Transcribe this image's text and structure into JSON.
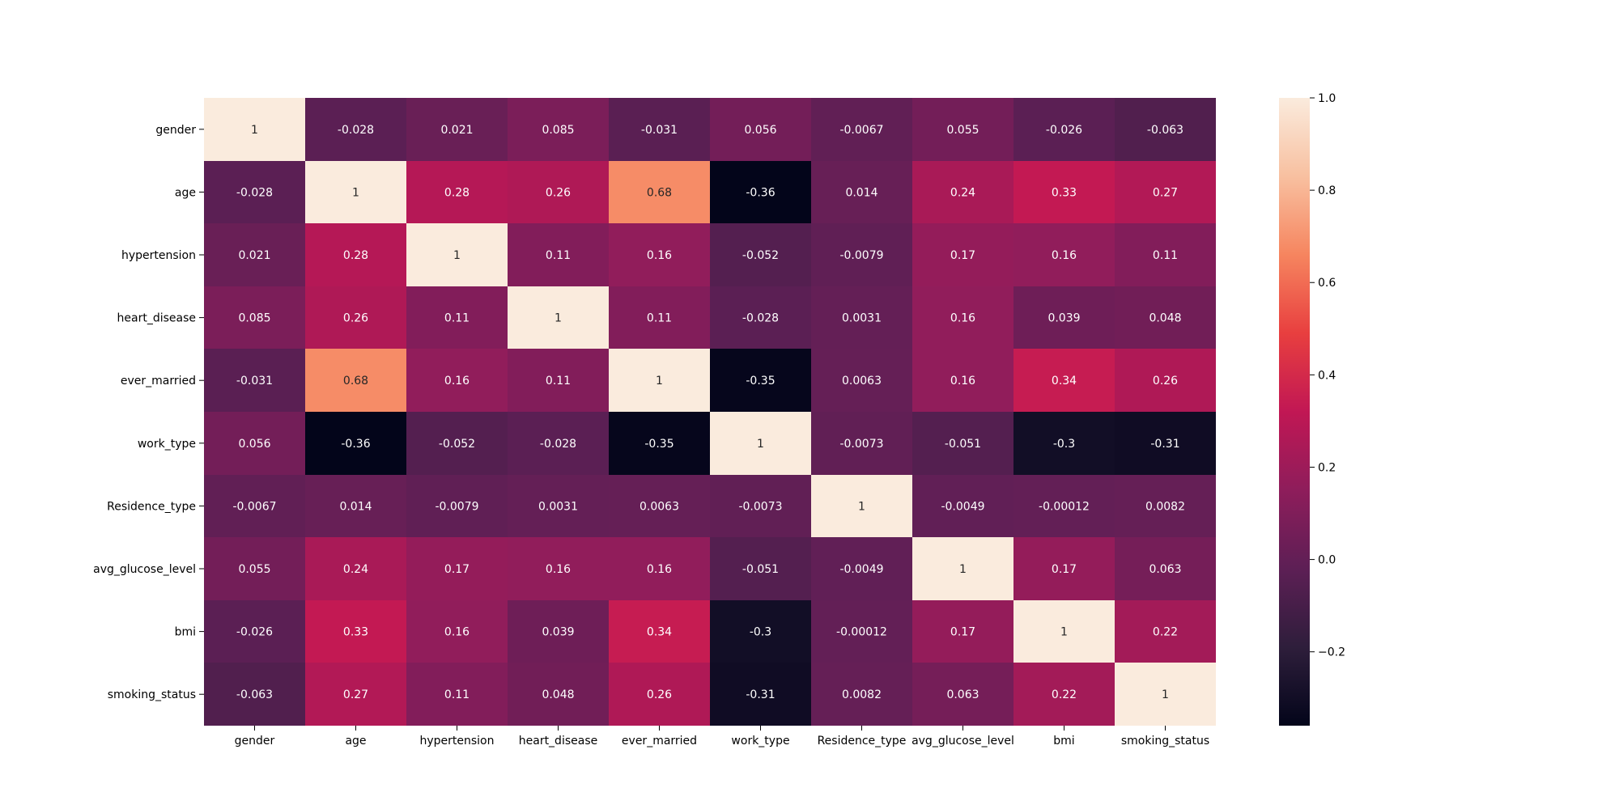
{
  "chart_data": {
    "type": "heatmap",
    "title": "",
    "xlabel": "",
    "ylabel": "",
    "x_categories": [
      "gender",
      "age",
      "hypertension",
      "heart_disease",
      "ever_married",
      "work_type",
      "Residence_type",
      "avg_glucose_level",
      "bmi",
      "smoking_status"
    ],
    "y_categories": [
      "gender",
      "age",
      "hypertension",
      "heart_disease",
      "ever_married",
      "work_type",
      "Residence_type",
      "avg_glucose_level",
      "bmi",
      "smoking_status"
    ],
    "values": [
      [
        1,
        -0.028,
        0.021,
        0.085,
        -0.031,
        0.056,
        -0.0067,
        0.055,
        -0.026,
        -0.063
      ],
      [
        -0.028,
        1,
        0.28,
        0.26,
        0.68,
        -0.36,
        0.014,
        0.24,
        0.33,
        0.27
      ],
      [
        0.021,
        0.28,
        1,
        0.11,
        0.16,
        -0.052,
        -0.0079,
        0.17,
        0.16,
        0.11
      ],
      [
        0.085,
        0.26,
        0.11,
        1,
        0.11,
        -0.028,
        0.0031,
        0.16,
        0.039,
        0.048
      ],
      [
        -0.031,
        0.68,
        0.16,
        0.11,
        1,
        -0.35,
        0.0063,
        0.16,
        0.34,
        0.26
      ],
      [
        0.056,
        -0.36,
        -0.052,
        -0.028,
        -0.35,
        1,
        -0.0073,
        -0.051,
        -0.3,
        -0.31
      ],
      [
        -0.0067,
        0.014,
        -0.0079,
        0.0031,
        0.0063,
        -0.0073,
        1,
        -0.0049,
        -0.00012,
        0.0082
      ],
      [
        0.055,
        0.24,
        0.17,
        0.16,
        0.16,
        -0.051,
        -0.0049,
        1,
        0.17,
        0.063
      ],
      [
        -0.026,
        0.33,
        0.16,
        0.039,
        0.34,
        -0.3,
        -0.00012,
        0.17,
        1,
        0.22
      ],
      [
        -0.063,
        0.27,
        0.11,
        0.048,
        0.26,
        -0.31,
        0.0082,
        0.063,
        0.22,
        1
      ]
    ],
    "cell_labels": [
      [
        "1",
        "-0.028",
        "0.021",
        "0.085",
        "-0.031",
        "0.056",
        "-0.0067",
        "0.055",
        "-0.026",
        "-0.063"
      ],
      [
        "-0.028",
        "1",
        "0.28",
        "0.26",
        "0.68",
        "-0.36",
        "0.014",
        "0.24",
        "0.33",
        "0.27"
      ],
      [
        "0.021",
        "0.28",
        "1",
        "0.11",
        "0.16",
        "-0.052",
        "-0.0079",
        "0.17",
        "0.16",
        "0.11"
      ],
      [
        "0.085",
        "0.26",
        "0.11",
        "1",
        "0.11",
        "-0.028",
        "0.0031",
        "0.16",
        "0.039",
        "0.048"
      ],
      [
        "-0.031",
        "0.68",
        "0.16",
        "0.11",
        "1",
        "-0.35",
        "0.0063",
        "0.16",
        "0.34",
        "0.26"
      ],
      [
        "0.056",
        "-0.36",
        "-0.052",
        "-0.028",
        "-0.35",
        "1",
        "-0.0073",
        "-0.051",
        "-0.3",
        "-0.31"
      ],
      [
        "-0.0067",
        "0.014",
        "-0.0079",
        "0.0031",
        "0.0063",
        "-0.0073",
        "1",
        "-0.0049",
        "-0.00012",
        "0.0082"
      ],
      [
        "0.055",
        "0.24",
        "0.17",
        "0.16",
        "0.16",
        "-0.051",
        "-0.0049",
        "1",
        "0.17",
        "0.063"
      ],
      [
        "-0.026",
        "0.33",
        "0.16",
        "0.039",
        "0.34",
        "-0.3",
        "-0.00012",
        "0.17",
        "1",
        "0.22"
      ],
      [
        "-0.063",
        "0.27",
        "0.11",
        "0.048",
        "0.26",
        "-0.31",
        "0.0082",
        "0.063",
        "0.22",
        "1"
      ]
    ],
    "colorbar": {
      "vmin": -0.36,
      "vmax": 1.0,
      "ticks": [
        1.0,
        0.8,
        0.6,
        0.4,
        0.2,
        0.0,
        -0.2
      ],
      "tick_labels": [
        "1.0",
        "0.8",
        "0.6",
        "0.4",
        "0.2",
        "0.0",
        "−0.2"
      ],
      "colormap": "rocket",
      "colormap_stops": [
        "#03051a",
        "#2e1e3b",
        "#5d1f55",
        "#8e1d5b",
        "#c11754",
        "#e83f3f",
        "#f6855f",
        "#f8c0a0",
        "#faebdd"
      ]
    },
    "grid": false,
    "legend": "colorbar-right"
  }
}
